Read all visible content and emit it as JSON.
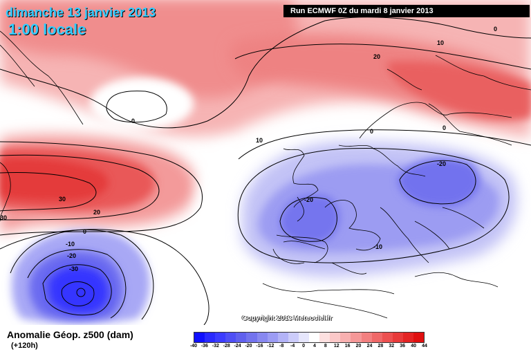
{
  "map": {
    "date_title": "dimanche 13 janvier 2013",
    "time_title": "1:00 locale",
    "run_info": "Run ECMWF 0Z du mardi 8 janvier 2013",
    "copyright": "Copyright 2013 Meteociel.fr",
    "field_name": "Anomalie Géop. z500 (dam)",
    "lead_time": "(+120h)",
    "contour_labels": [
      "10",
      "0",
      "20",
      "0",
      "10",
      "30",
      "20",
      "30",
      "0",
      "-10",
      "-20",
      "-30",
      "-20",
      "-20",
      "-10",
      "0",
      "0"
    ],
    "scale": {
      "labels": [
        "-40",
        "-36",
        "-32",
        "-28",
        "-24",
        "-20",
        "-16",
        "-12",
        "-8",
        "-4",
        "0",
        "4",
        "8",
        "12",
        "16",
        "20",
        "24",
        "28",
        "32",
        "36",
        "40",
        "44"
      ],
      "colors": [
        "#1010ff",
        "#2a2aff",
        "#3c3cff",
        "#4f4ff5",
        "#6060ee",
        "#7373ee",
        "#8888f0",
        "#9c9cf4",
        "#b3b3f7",
        "#ccccfa",
        "#e6e6fc",
        "#ffffff",
        "#fde0e0",
        "#fbc8c8",
        "#f8b0b0",
        "#f59898",
        "#f28080",
        "#ef6868",
        "#ec5050",
        "#e83a3a",
        "#e42424",
        "#e01010"
      ]
    },
    "colors": {
      "title_cyan": "#33ccff",
      "positive_anomaly": "#f07070",
      "negative_anomaly": "#6f6fee",
      "land_outline": "#000000"
    }
  }
}
